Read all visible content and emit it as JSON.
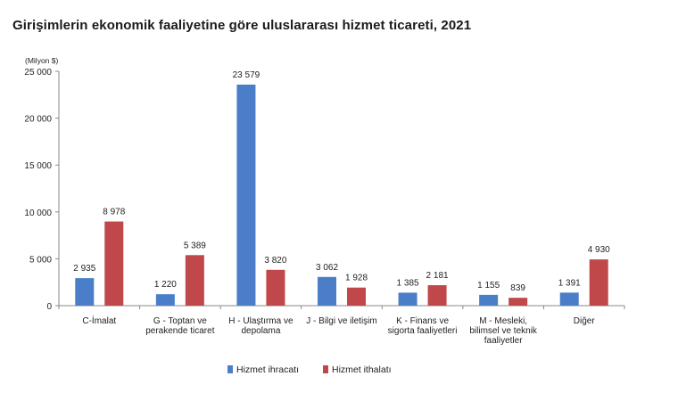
{
  "chart_data": {
    "type": "bar",
    "title": "Girişimlerin ekonomik faaliyetine göre uluslararası hizmet ticareti, 2021",
    "unit_label": "(Milyon $)",
    "ylim": [
      0,
      25000
    ],
    "yticks": [
      0,
      5000,
      10000,
      15000,
      20000,
      25000
    ],
    "ytick_labels": [
      "0",
      "5 000",
      "10 000",
      "15 000",
      "20 000",
      "25 000"
    ],
    "categories": [
      [
        "C-İmalat"
      ],
      [
        "G - Toptan ve",
        "perakende ticaret"
      ],
      [
        "H - Ulaştırma ve",
        "depolama"
      ],
      [
        "J - Bilgi ve iletişim"
      ],
      [
        "K - Finans ve",
        "sigorta faaliyetleri"
      ],
      [
        "M - Mesleki,",
        "bilimsel ve teknik",
        "faaliyetler"
      ],
      [
        "Diğer"
      ]
    ],
    "series": [
      {
        "name": "Hizmet ihracatı",
        "color": "#4a7ec8",
        "values": [
          2935,
          1220,
          23579,
          3062,
          1385,
          1155,
          1391
        ],
        "labels": [
          "2 935",
          "1 220",
          "23 579",
          "3 062",
          "1 385",
          "1 155",
          "1 391"
        ]
      },
      {
        "name": "Hizmet ithalatı",
        "color": "#c0474a",
        "values": [
          8978,
          5389,
          3820,
          1928,
          2181,
          839,
          4930
        ],
        "labels": [
          "8 978",
          "5 389",
          "3 820",
          "1 928",
          "2 181",
          "839",
          "4 930"
        ]
      }
    ],
    "legend_position": "bottom",
    "grid": false
  }
}
